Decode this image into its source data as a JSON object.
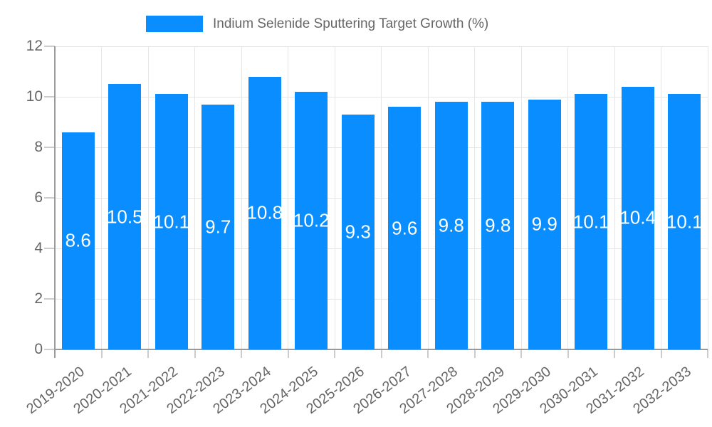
{
  "legend": {
    "label": "Indium Selenide Sputtering Target Growth (%)"
  },
  "chart_data": {
    "type": "bar",
    "title": "Indium Selenide Sputtering Target Growth (%)",
    "series_name": "Indium Selenide Sputtering Target Growth (%)",
    "categories": [
      "2019-2020",
      "2020-2021",
      "2021-2022",
      "2022-2023",
      "2023-2024",
      "2024-2025",
      "2025-2026",
      "2026-2027",
      "2027-2028",
      "2028-2029",
      "2029-2030",
      "2030-2031",
      "2031-2032",
      "2032-2033"
    ],
    "values": [
      8.6,
      10.5,
      10.1,
      9.7,
      10.8,
      10.2,
      9.3,
      9.6,
      9.8,
      9.8,
      9.9,
      10.1,
      10.4,
      10.1
    ],
    "value_labels": [
      "8.6",
      "10.5",
      "10.1",
      "9.7",
      "10.8",
      "10.2",
      "9.3",
      "9.6",
      "9.8",
      "9.8",
      "9.9",
      "10.1",
      "10.4",
      "10.1"
    ],
    "xlabel": "",
    "ylabel": "",
    "ylim": [
      0,
      12
    ],
    "y_ticks": [
      0,
      2,
      4,
      6,
      8,
      10,
      12
    ],
    "y_tick_labels": [
      "0",
      "2",
      "4",
      "6",
      "8",
      "10",
      "12"
    ],
    "grid": true,
    "legend_position": "top",
    "x_tick_rotation_deg": -37,
    "colors": {
      "bar": "#0a8dff",
      "grid": "#e6e6e6",
      "axis": "#9a9a9a",
      "tick": "#cccccc",
      "tick_text": "#666666",
      "value_label": "#ffffff",
      "background": "#ffffff"
    }
  }
}
